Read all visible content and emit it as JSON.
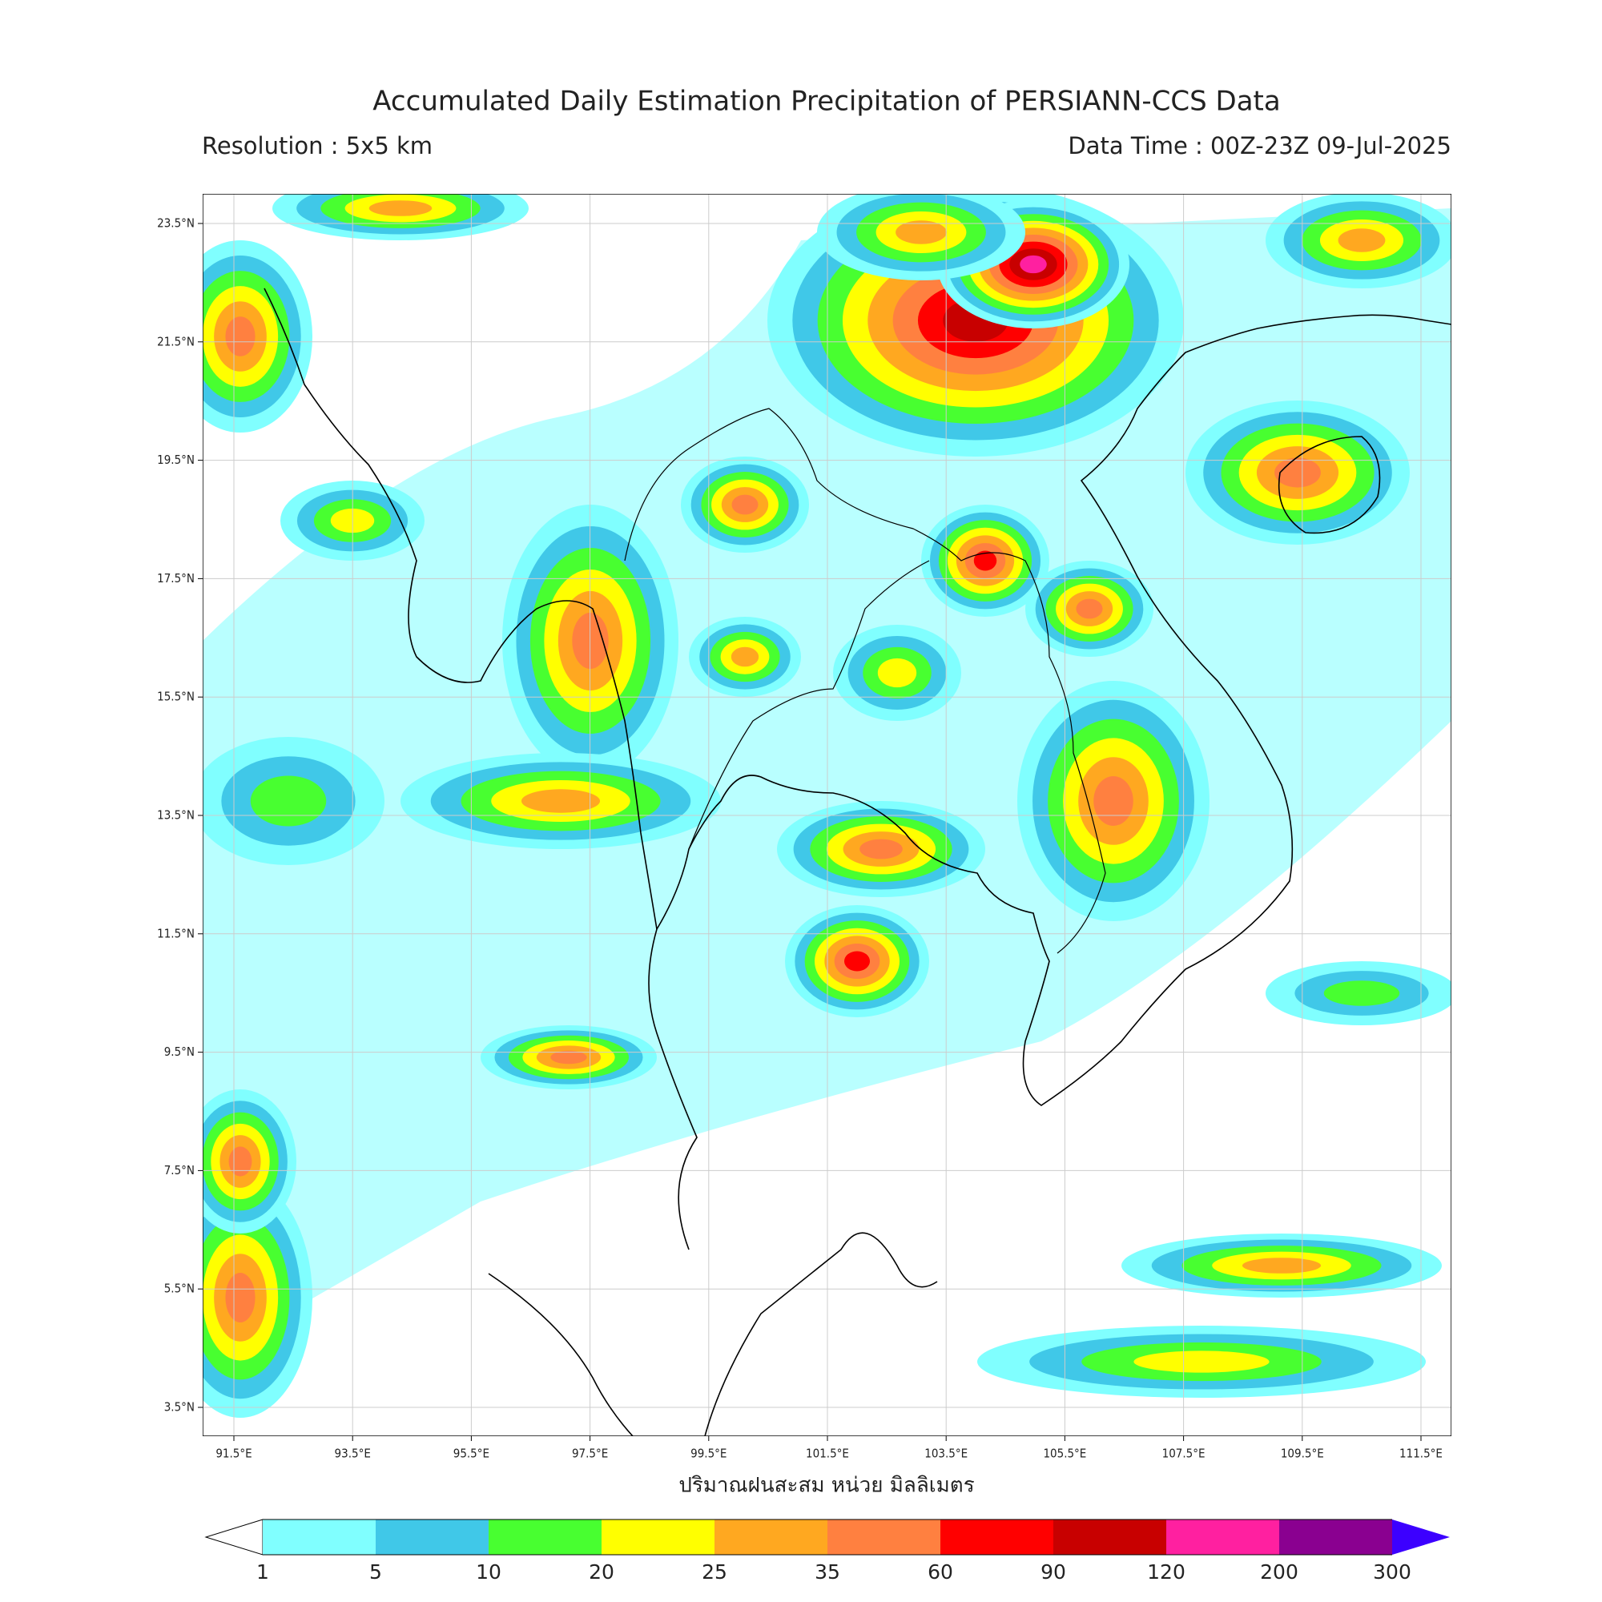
{
  "header": {
    "title": "Accumulated Daily Estimation Precipitation of PERSIANN-CCS Data",
    "resolution": "Resolution : 5x5 km",
    "data_time": "Data Time : 00Z-23Z 09-Jul-2025"
  },
  "map": {
    "lat_labels": [
      "23.5°N",
      "21.5°N",
      "19.5°N",
      "17.5°N",
      "15.5°N",
      "13.5°N",
      "11.5°N",
      "9.5°N",
      "7.5°N",
      "5.5°N",
      "3.5°N"
    ],
    "lon_labels": [
      "91.5°E",
      "93.5°E",
      "95.5°E",
      "97.5°E",
      "99.5°E",
      "101.5°E",
      "103.5°E",
      "105.5°E",
      "107.5°E",
      "109.5°E",
      "111.5°E"
    ],
    "x_label": "ปริมาณฝนสะสม หน่วย มิลลิเมตร"
  },
  "colorbar": {
    "ticks": [
      1,
      5,
      10,
      20,
      25,
      35,
      60,
      90,
      120,
      200,
      300
    ],
    "colors": [
      "#80ffff",
      "#40c8e8",
      "#48ff30",
      "#ffff00",
      "#ffa820",
      "#ff8040",
      "#ff0000",
      "#c80000",
      "#ff20a0",
      "#8a0090",
      "#3c00ff"
    ]
  }
}
